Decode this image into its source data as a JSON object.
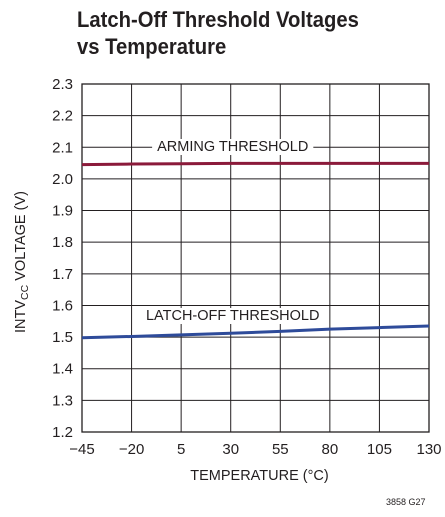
{
  "chart_data": {
    "type": "line",
    "title_line1": "Latch-Off Threshold Voltages",
    "title_line2": "vs Temperature",
    "xlabel": "TEMPERATURE (°C)",
    "ylabel": {
      "pre": "INTV",
      "sub": "CC",
      "post": " VOLTAGE (V)"
    },
    "xlim": [
      -45,
      130
    ],
    "ylim": [
      1.2,
      2.3
    ],
    "x_ticks": [
      -45,
      -20,
      5,
      30,
      55,
      80,
      105,
      130
    ],
    "x_tick_labels": [
      "−45",
      "−20",
      "5",
      "30",
      "55",
      "80",
      "105",
      "130"
    ],
    "y_ticks": [
      1.2,
      1.3,
      1.4,
      1.5,
      1.6,
      1.7,
      1.8,
      1.9,
      2.0,
      2.1,
      2.2,
      2.3
    ],
    "y_tick_labels": [
      "1.2",
      "1.3",
      "1.4",
      "1.5",
      "1.6",
      "1.7",
      "1.8",
      "1.9",
      "2.0",
      "2.1",
      "2.2",
      "2.3"
    ],
    "grid": true,
    "series": [
      {
        "name": "ARMING THRESHOLD",
        "color": "#8b1a3a",
        "x": [
          -45,
          -20,
          5,
          30,
          55,
          80,
          105,
          130
        ],
        "y": [
          2.045,
          2.047,
          2.048,
          2.049,
          2.049,
          2.049,
          2.049,
          2.049
        ]
      },
      {
        "name": "LATCH-OFF THRESHOLD",
        "color": "#2e4b9a",
        "x": [
          -45,
          -20,
          5,
          30,
          55,
          80,
          105,
          130
        ],
        "y": [
          1.498,
          1.502,
          1.507,
          1.512,
          1.518,
          1.525,
          1.53,
          1.535
        ]
      }
    ]
  },
  "figure_id": "3858 G27"
}
